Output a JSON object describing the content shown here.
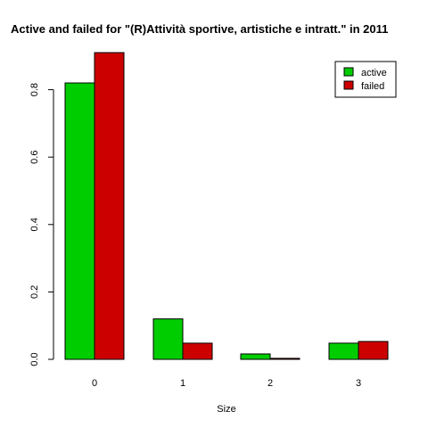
{
  "chart_data": {
    "type": "bar",
    "title": "Active and failed for \"(R)Attività sportive, artistiche e intratt.\" in 2011",
    "xlabel": "Size",
    "ylabel": "",
    "categories": [
      "0",
      "1",
      "2",
      "3"
    ],
    "series": [
      {
        "name": "active",
        "values": [
          0.82,
          0.12,
          0.016,
          0.048
        ],
        "color": "#00cd00"
      },
      {
        "name": "failed",
        "values": [
          0.91,
          0.048,
          0.003,
          0.053
        ],
        "color": "#cd0000"
      }
    ],
    "ylim": [
      0,
      0.91
    ],
    "yticks": [
      "0.0",
      "0.2",
      "0.4",
      "0.6",
      "0.8"
    ],
    "ytick_values": [
      0,
      0.2,
      0.4,
      0.6,
      0.8
    ],
    "legend_position": "top-right",
    "grid": false
  }
}
